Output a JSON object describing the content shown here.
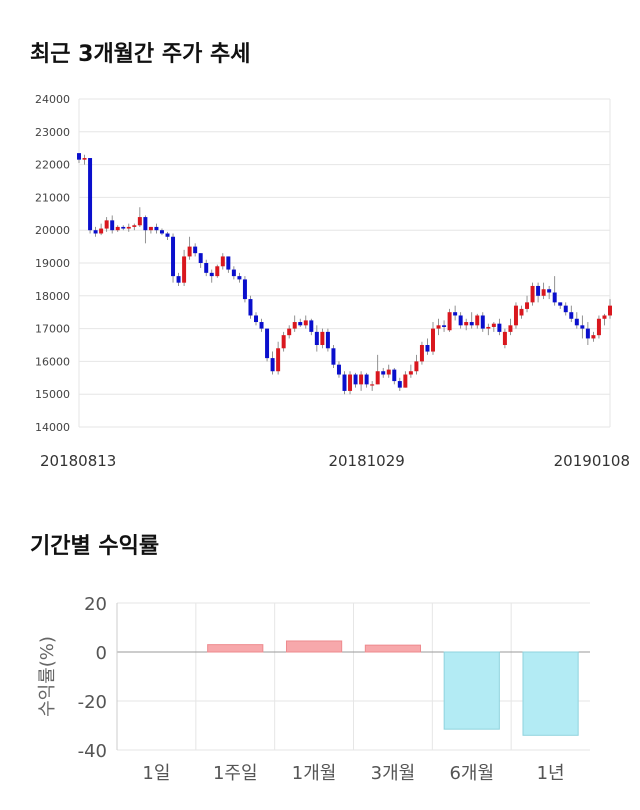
{
  "price_section": {
    "title": "최근 3개월간 주가 추세"
  },
  "return_section": {
    "title": "기간별 수익률"
  },
  "colors": {
    "up": "#d9171e",
    "down": "#0a0fcc",
    "positive_bar": "#f7a8ab",
    "negative_bar": "#b3ebf4",
    "negative_bar_border": "#8fd3de",
    "positive_bar_border": "#ee8a8e"
  },
  "chart_data": [
    {
      "type": "candlestick",
      "ylim": [
        14000,
        24000
      ],
      "y_ticks": [
        "14000",
        "15000",
        "16000",
        "17000",
        "18000",
        "19000",
        "20000",
        "21000",
        "22000",
        "23000",
        "24000"
      ],
      "x_tick_labels": [
        {
          "label": "20180813",
          "index": 0
        },
        {
          "label": "20181029",
          "index": 52
        },
        {
          "label": "20190108",
          "index": 101
        }
      ],
      "grid": true,
      "candles": [
        [
          22350,
          22350,
          22050,
          22150
        ],
        [
          22150,
          22300,
          22000,
          22200
        ],
        [
          22200,
          22200,
          19900,
          20000
        ],
        [
          20000,
          20100,
          19800,
          19900
        ],
        [
          19900,
          20200,
          19850,
          20050
        ],
        [
          20050,
          20400,
          19950,
          20300
        ],
        [
          20300,
          20450,
          19900,
          20000
        ],
        [
          20000,
          20150,
          19950,
          20100
        ],
        [
          20100,
          20150,
          20000,
          20050
        ],
        [
          20050,
          20200,
          19950,
          20100
        ],
        [
          20100,
          20200,
          20000,
          20150
        ],
        [
          20150,
          20700,
          20100,
          20400
        ],
        [
          20400,
          20450,
          19600,
          20000
        ],
        [
          20000,
          20100,
          19900,
          20100
        ],
        [
          20100,
          20200,
          19900,
          20000
        ],
        [
          20000,
          20050,
          19850,
          19900
        ],
        [
          19900,
          19950,
          19700,
          19800
        ],
        [
          19800,
          19900,
          18400,
          18600
        ],
        [
          18600,
          18700,
          18300,
          18400
        ],
        [
          18400,
          19400,
          18300,
          19200
        ],
        [
          19200,
          19800,
          19100,
          19500
        ],
        [
          19500,
          19600,
          19200,
          19300
        ],
        [
          19300,
          19300,
          18850,
          19000
        ],
        [
          19000,
          19100,
          18600,
          18700
        ],
        [
          18700,
          18800,
          18400,
          18600
        ],
        [
          18600,
          18950,
          18550,
          18900
        ],
        [
          18900,
          19300,
          18800,
          19200
        ],
        [
          19200,
          19200,
          18700,
          18800
        ],
        [
          18800,
          18900,
          18500,
          18600
        ],
        [
          18600,
          18700,
          18400,
          18500
        ],
        [
          18500,
          18600,
          17800,
          17900
        ],
        [
          17900,
          18000,
          17300,
          17400
        ],
        [
          17400,
          17500,
          17100,
          17200
        ],
        [
          17200,
          17300,
          16900,
          17000
        ],
        [
          17000,
          17000,
          16000,
          16100
        ],
        [
          16100,
          16300,
          15600,
          15700
        ],
        [
          15700,
          16600,
          15600,
          16400
        ],
        [
          16400,
          16900,
          16300,
          16800
        ],
        [
          16800,
          17100,
          16700,
          17000
        ],
        [
          17000,
          17400,
          16900,
          17200
        ],
        [
          17200,
          17300,
          17050,
          17100
        ],
        [
          17100,
          17400,
          17000,
          17250
        ],
        [
          17250,
          17300,
          16800,
          16900
        ],
        [
          16900,
          17100,
          16300,
          16500
        ],
        [
          16500,
          17000,
          16400,
          16900
        ],
        [
          16900,
          17000,
          16300,
          16400
        ],
        [
          16400,
          16500,
          15800,
          15900
        ],
        [
          15900,
          16000,
          15500,
          15600
        ],
        [
          15600,
          15700,
          15000,
          15100
        ],
        [
          15100,
          15700,
          15000,
          15600
        ],
        [
          15600,
          15650,
          15200,
          15300
        ],
        [
          15300,
          15700,
          15100,
          15600
        ],
        [
          15600,
          15650,
          15200,
          15300
        ],
        [
          15300,
          15400,
          15100,
          15300
        ],
        [
          15300,
          16200,
          15300,
          15700
        ],
        [
          15700,
          15800,
          15500,
          15600
        ],
        [
          15600,
          15900,
          15500,
          15750
        ],
        [
          15750,
          15800,
          15300,
          15400
        ],
        [
          15400,
          15500,
          15100,
          15200
        ],
        [
          15200,
          15700,
          15200,
          15600
        ],
        [
          15600,
          15900,
          15500,
          15700
        ],
        [
          15700,
          16200,
          15600,
          16000
        ],
        [
          16000,
          16600,
          15900,
          16500
        ],
        [
          16500,
          16700,
          16200,
          16300
        ],
        [
          16300,
          17200,
          16200,
          17000
        ],
        [
          17000,
          17300,
          16800,
          17100
        ],
        [
          17100,
          17250,
          16900,
          17050
        ],
        [
          16950,
          17600,
          16900,
          17500
        ],
        [
          17500,
          17700,
          17250,
          17400
        ],
        [
          17400,
          17500,
          17000,
          17100
        ],
        [
          17100,
          17300,
          16950,
          17200
        ],
        [
          17200,
          17500,
          17000,
          17100
        ],
        [
          17100,
          17450,
          17000,
          17400
        ],
        [
          17400,
          17500,
          16900,
          17000
        ],
        [
          17000,
          17150,
          16800,
          17050
        ],
        [
          17050,
          17200,
          16900,
          17150
        ],
        [
          17150,
          17300,
          16800,
          16900
        ],
        [
          16500,
          17000,
          16400,
          16900
        ],
        [
          16900,
          17300,
          16800,
          17100
        ],
        [
          17100,
          17800,
          17000,
          17700
        ],
        [
          17400,
          17700,
          17300,
          17600
        ],
        [
          17600,
          18000,
          17500,
          17800
        ],
        [
          17800,
          18400,
          17700,
          18300
        ],
        [
          18300,
          18400,
          17800,
          18000
        ],
        [
          18000,
          18400,
          17900,
          18200
        ],
        [
          18200,
          18300,
          17900,
          18100
        ],
        [
          18100,
          18600,
          17700,
          17800
        ],
        [
          17800,
          17800,
          17600,
          17700
        ],
        [
          17700,
          17800,
          17400,
          17500
        ],
        [
          17500,
          17700,
          17200,
          17300
        ],
        [
          17300,
          17500,
          17000,
          17100
        ],
        [
          17100,
          17400,
          16700,
          17000
        ],
        [
          17000,
          17200,
          16500,
          16700
        ],
        [
          16700,
          16900,
          16600,
          16800
        ],
        [
          16800,
          17400,
          16700,
          17300
        ],
        [
          17300,
          17450,
          17100,
          17400
        ],
        [
          17400,
          17900,
          17300,
          17700
        ]
      ]
    },
    {
      "type": "bar",
      "categories": [
        "1일",
        "1주일",
        "1개월",
        "3개월",
        "6개월",
        "1년"
      ],
      "values": [
        0.0,
        3.0,
        4.5,
        2.8,
        -31.5,
        -34.0
      ],
      "ylim": [
        -40,
        20
      ],
      "y_ticks": [
        "-40",
        "-20",
        "0",
        "20"
      ],
      "ylabel": "수익률(%)",
      "grid": true
    }
  ]
}
